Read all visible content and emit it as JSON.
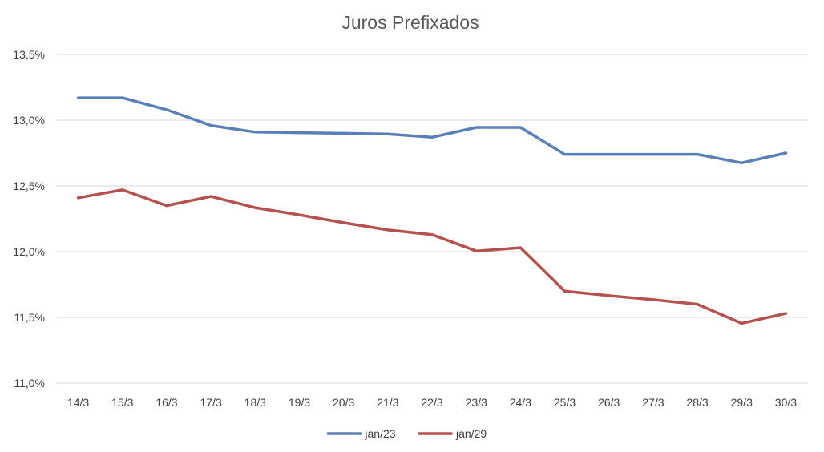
{
  "chart_data": {
    "type": "line",
    "title": "Juros Prefixados",
    "categories": [
      "14/3",
      "15/3",
      "16/3",
      "17/3",
      "18/3",
      "19/3",
      "20/3",
      "21/3",
      "22/3",
      "23/3",
      "24/3",
      "25/3",
      "26/3",
      "27/3",
      "28/3",
      "29/3",
      "30/3"
    ],
    "ylim": [
      11.0,
      13.5
    ],
    "yticks": [
      11.0,
      11.5,
      12.0,
      12.5,
      13.0,
      13.5
    ],
    "ytick_labels": [
      "11,0%",
      "11,5%",
      "12,0%",
      "12,5%",
      "13,0%",
      "13,5%"
    ],
    "grid": true,
    "legend_position": "bottom",
    "series": [
      {
        "name": "jan/23",
        "color": "#5b7fb9",
        "values": [
          13.17,
          13.17,
          13.08,
          12.96,
          12.91,
          12.905,
          12.9,
          12.895,
          12.87,
          12.945,
          12.945,
          12.74,
          12.74,
          12.74,
          12.74,
          12.675,
          12.75
        ]
      },
      {
        "name": "jan/29",
        "color": "#b5524f",
        "values": [
          12.41,
          12.47,
          12.35,
          12.42,
          12.335,
          12.28,
          12.22,
          12.165,
          12.13,
          12.005,
          12.03,
          11.7,
          11.665,
          11.635,
          11.6,
          11.455,
          11.53
        ]
      }
    ]
  }
}
